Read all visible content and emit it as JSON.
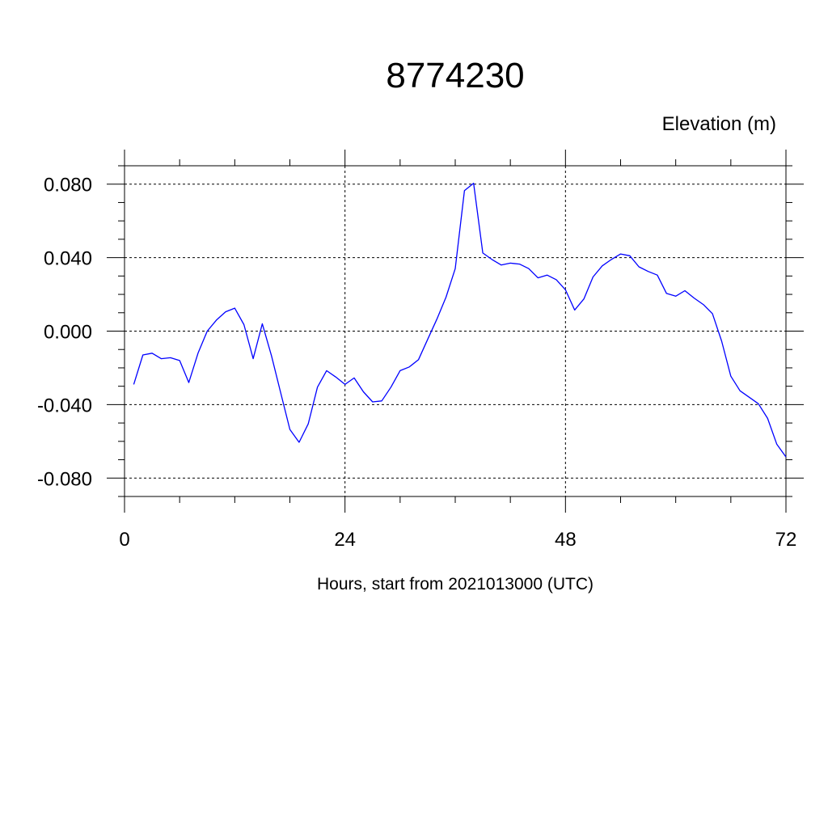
{
  "chart_data": {
    "type": "line",
    "title": "8774230",
    "ylabel": "Elevation (m)",
    "xlabel": "Hours, start from 2021013000 (UTC)",
    "xlim": [
      0,
      72
    ],
    "ylim": [
      -0.09,
      0.09
    ],
    "x_ticks": [
      0,
      24,
      48,
      72
    ],
    "x_tick_labels": [
      "0",
      "24",
      "48",
      "72"
    ],
    "y_ticks": [
      0.08,
      0.04,
      0.0,
      -0.04,
      -0.08
    ],
    "y_tick_labels": [
      "0.080",
      "0.040",
      "0.000",
      "-0.040",
      "-0.080"
    ],
    "grid": true,
    "line_color": "#0000ff",
    "series": [
      {
        "x": [
          1,
          2,
          3,
          4,
          5,
          6,
          7,
          8,
          9,
          10,
          11,
          12,
          13,
          14,
          15,
          16,
          17,
          18,
          19,
          20,
          21,
          22,
          23,
          24,
          25,
          26,
          27,
          28,
          29,
          30,
          31,
          32,
          33,
          34,
          35,
          36,
          37,
          38,
          39,
          40,
          41,
          42,
          43,
          44,
          45,
          46,
          47,
          48,
          49,
          50,
          51,
          52,
          53,
          54,
          55,
          56,
          57,
          58,
          59,
          60,
          61,
          62,
          63,
          64,
          65,
          66,
          67,
          68,
          69,
          70,
          71,
          72
        ],
        "values": [
          -0.029,
          -0.013,
          -0.012,
          -0.015,
          -0.0145,
          -0.016,
          -0.028,
          -0.012,
          0.0,
          0.006,
          0.0105,
          0.0125,
          0.0035,
          -0.015,
          0.004,
          -0.0135,
          -0.0335,
          -0.0535,
          -0.0605,
          -0.0505,
          -0.0305,
          -0.0215,
          -0.025,
          -0.029,
          -0.0255,
          -0.033,
          -0.0385,
          -0.038,
          -0.0305,
          -0.0215,
          -0.0195,
          -0.0155,
          -0.0045,
          0.0065,
          0.0185,
          0.034,
          0.0765,
          0.0805,
          0.0425,
          0.039,
          0.036,
          0.037,
          0.0365,
          0.034,
          0.029,
          0.0305,
          0.028,
          0.0225,
          0.0115,
          0.0175,
          0.0295,
          0.0355,
          0.039,
          0.042,
          0.041,
          0.035,
          0.0325,
          0.0305,
          0.0205,
          0.019,
          0.022,
          0.018,
          0.0145,
          0.0095,
          -0.0055,
          -0.0245,
          -0.0325,
          -0.036,
          -0.0395,
          -0.0475,
          -0.0615,
          -0.0685
        ]
      }
    ]
  }
}
